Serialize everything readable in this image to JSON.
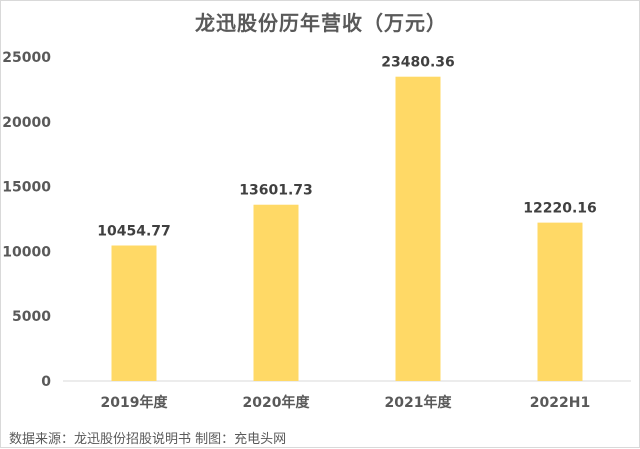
{
  "chart_data": {
    "type": "bar",
    "title": "龙迅股份历年营收（万元）",
    "categories": [
      "2019年度",
      "2020年度",
      "2021年度",
      "2022H1"
    ],
    "series": [
      {
        "values": [
          10454.77,
          13601.73,
          23480.36,
          12220.16
        ]
      }
    ],
    "data_labels": [
      "10454.77",
      "13601.73",
      "23480.36",
      "12220.16"
    ],
    "y_ticks": [
      "0",
      "5000",
      "10000",
      "15000",
      "20000",
      "25000"
    ],
    "ylim": [
      0,
      25000
    ],
    "xlabel": "",
    "ylabel": "",
    "grid": false,
    "legend": "none",
    "bar_color": "#FFD966"
  },
  "source_text": "数据来源：龙迅股份招股说明书  制图：充电头网"
}
